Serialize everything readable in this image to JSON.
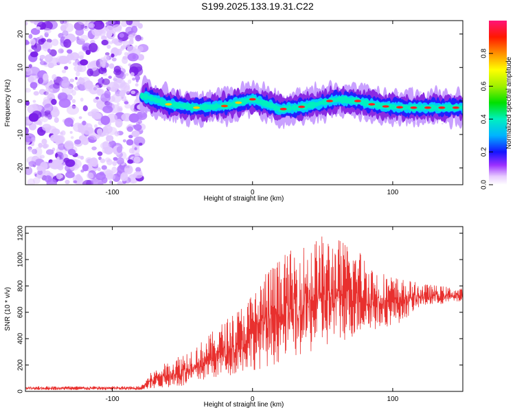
{
  "title": "S199.2025.133.19.31.C22",
  "chart_data": [
    {
      "type": "heatmap",
      "xlabel": "Height of straight line (km)",
      "ylabel": "Frequency (Hz)",
      "xlim": [
        -162,
        150
      ],
      "ylim": [
        -25,
        24
      ],
      "xticks": [
        -100,
        0,
        100
      ],
      "yticks": [
        -20,
        -10,
        0,
        10,
        20
      ],
      "colorbar": {
        "label": "Normalized spectral amplitude",
        "range": [
          0,
          1
        ],
        "ticks": [
          0.0,
          0.2,
          0.4,
          0.6,
          0.8
        ]
      },
      "ridge_frequency_hz": {
        "x": [
          -78,
          -60,
          -40,
          -20,
          0,
          20,
          40,
          60,
          75,
          90,
          110,
          150
        ],
        "y": [
          1.5,
          -1,
          -2,
          -1.5,
          0.5,
          -2.5,
          -1.5,
          0.5,
          0,
          -1.5,
          -2,
          -2
        ]
      }
    },
    {
      "type": "line",
      "xlabel": "Height of straight line (km)",
      "ylabel": "SNR (10 * v/v)",
      "xlim": [
        -162,
        150
      ],
      "ylim": [
        0,
        1250
      ],
      "xticks": [
        -100,
        0,
        100
      ],
      "yticks": [
        0,
        200,
        400,
        600,
        800,
        1000,
        1200
      ],
      "color": "#e8302e",
      "envelope": {
        "x": [
          -162,
          -80,
          -72,
          -60,
          -45,
          -35,
          -20,
          -5,
          10,
          25,
          40,
          50,
          60,
          75,
          90,
          105,
          120,
          150
        ],
        "low": [
          10,
          10,
          20,
          30,
          30,
          80,
          110,
          150,
          180,
          240,
          280,
          320,
          360,
          420,
          470,
          520,
          640,
          680
        ],
        "high": [
          40,
          40,
          150,
          230,
          330,
          390,
          540,
          680,
          930,
          1060,
          1140,
          1190,
          1170,
          1100,
          920,
          860,
          820,
          780
        ]
      }
    }
  ]
}
